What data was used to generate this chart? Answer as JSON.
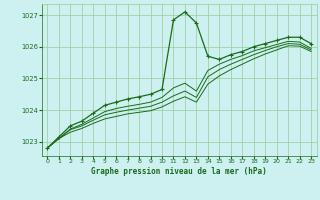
{
  "title": "Graphe pression niveau de la mer (hPa)",
  "background_color": "#cdf0f0",
  "plot_bg_color": "#cdf0f0",
  "grid_color": "#99cc99",
  "line_color": "#1a6b1a",
  "marker_color": "#1a6b1a",
  "xlim": [
    -0.5,
    23.5
  ],
  "ylim": [
    1022.55,
    1027.35
  ],
  "yticks": [
    1023,
    1024,
    1025,
    1026,
    1027
  ],
  "xticks": [
    0,
    1,
    2,
    3,
    4,
    5,
    6,
    7,
    8,
    9,
    10,
    11,
    12,
    13,
    14,
    15,
    16,
    17,
    18,
    19,
    20,
    21,
    22,
    23
  ],
  "hours": [
    0,
    1,
    2,
    3,
    4,
    5,
    6,
    7,
    8,
    9,
    10,
    11,
    12,
    13,
    14,
    15,
    16,
    17,
    18,
    19,
    20,
    21,
    22,
    23
  ],
  "line1": [
    1022.8,
    1023.15,
    1023.5,
    1023.65,
    1023.9,
    1024.15,
    1024.25,
    1024.35,
    1024.42,
    1024.5,
    1024.65,
    1026.85,
    1027.1,
    1026.75,
    1025.7,
    1025.6,
    1025.75,
    1025.85,
    1026.0,
    1026.1,
    1026.2,
    1026.3,
    1026.3,
    1026.1
  ],
  "line2": [
    1022.8,
    1023.1,
    1023.4,
    1023.55,
    1023.75,
    1023.95,
    1024.05,
    1024.12,
    1024.18,
    1024.25,
    1024.4,
    1024.7,
    1024.85,
    1024.6,
    1025.25,
    1025.45,
    1025.6,
    1025.72,
    1025.87,
    1025.97,
    1026.07,
    1026.17,
    1026.15,
    1025.95
  ],
  "line3": [
    1022.8,
    1023.1,
    1023.38,
    1023.5,
    1023.68,
    1023.85,
    1023.93,
    1024.0,
    1024.06,
    1024.12,
    1024.25,
    1024.45,
    1024.6,
    1024.4,
    1025.05,
    1025.28,
    1025.45,
    1025.6,
    1025.75,
    1025.88,
    1026.0,
    1026.1,
    1026.08,
    1025.9
  ],
  "line4": [
    1022.8,
    1023.1,
    1023.3,
    1023.42,
    1023.58,
    1023.72,
    1023.8,
    1023.88,
    1023.93,
    1023.98,
    1024.1,
    1024.28,
    1024.42,
    1024.25,
    1024.82,
    1025.08,
    1025.28,
    1025.45,
    1025.62,
    1025.77,
    1025.9,
    1026.03,
    1026.02,
    1025.85
  ]
}
